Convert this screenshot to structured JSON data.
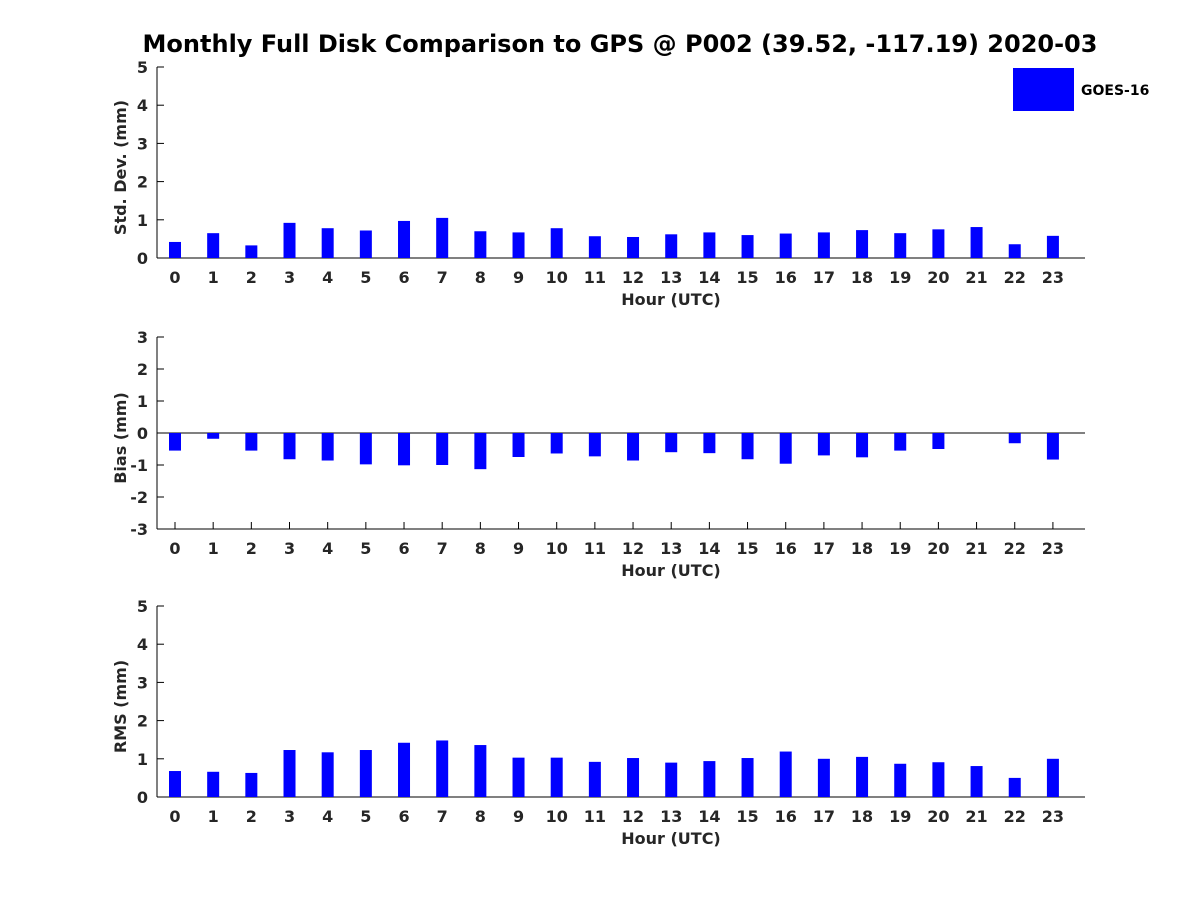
{
  "title": "Monthly Full Disk Comparison to GPS @ P002 (39.52, -117.19) 2020-03",
  "colors": {
    "bar": "#0000ff",
    "axis": "#000000",
    "text": "#262626"
  },
  "legend": {
    "label": "GOES-16",
    "placement": "top-right"
  },
  "chart_data": [
    {
      "type": "bar",
      "xlabel": "Hour (UTC)",
      "ylabel": "Std. Dev. (mm)",
      "ylim": [
        0,
        5
      ],
      "yticks": [
        0,
        1,
        2,
        3,
        4,
        5
      ],
      "categories": [
        "0",
        "1",
        "2",
        "3",
        "4",
        "5",
        "6",
        "7",
        "8",
        "9",
        "10",
        "11",
        "12",
        "13",
        "14",
        "15",
        "16",
        "17",
        "18",
        "19",
        "20",
        "21",
        "22",
        "23"
      ],
      "series": [
        {
          "name": "GOES-16",
          "values": [
            0.42,
            0.65,
            0.33,
            0.92,
            0.78,
            0.72,
            0.97,
            1.05,
            0.7,
            0.67,
            0.78,
            0.57,
            0.55,
            0.62,
            0.67,
            0.6,
            0.64,
            0.67,
            0.73,
            0.65,
            0.75,
            0.81,
            0.36,
            0.58
          ]
        }
      ],
      "grid": false,
      "legend": true
    },
    {
      "type": "bar",
      "xlabel": "Hour (UTC)",
      "ylabel": "Bias (mm)",
      "ylim": [
        -3,
        3
      ],
      "yticks": [
        -3,
        -2,
        -1,
        0,
        1,
        2,
        3
      ],
      "categories": [
        "0",
        "1",
        "2",
        "3",
        "4",
        "5",
        "6",
        "7",
        "8",
        "9",
        "10",
        "11",
        "12",
        "13",
        "14",
        "15",
        "16",
        "17",
        "18",
        "19",
        "20",
        "21",
        "22",
        "23"
      ],
      "series": [
        {
          "name": "GOES-16",
          "values": [
            -0.55,
            -0.18,
            -0.55,
            -0.82,
            -0.86,
            -0.98,
            -1.01,
            -1.0,
            -1.13,
            -0.75,
            -0.64,
            -0.73,
            -0.86,
            -0.6,
            -0.63,
            -0.82,
            -0.96,
            -0.7,
            -0.76,
            -0.55,
            -0.5,
            0.0,
            -0.32,
            -0.83
          ]
        }
      ],
      "grid": false,
      "legend": false
    },
    {
      "type": "bar",
      "xlabel": "Hour (UTC)",
      "ylabel": "RMS (mm)",
      "ylim": [
        0,
        5
      ],
      "yticks": [
        0,
        1,
        2,
        3,
        4,
        5
      ],
      "categories": [
        "0",
        "1",
        "2",
        "3",
        "4",
        "5",
        "6",
        "7",
        "8",
        "9",
        "10",
        "11",
        "12",
        "13",
        "14",
        "15",
        "16",
        "17",
        "18",
        "19",
        "20",
        "21",
        "22",
        "23"
      ],
      "series": [
        {
          "name": "GOES-16",
          "values": [
            0.68,
            0.66,
            0.63,
            1.23,
            1.17,
            1.23,
            1.42,
            1.48,
            1.36,
            1.03,
            1.03,
            0.92,
            1.02,
            0.9,
            0.94,
            1.02,
            1.19,
            1.0,
            1.05,
            0.87,
            0.91,
            0.81,
            0.5,
            1.0
          ]
        }
      ],
      "grid": false,
      "legend": false
    }
  ]
}
